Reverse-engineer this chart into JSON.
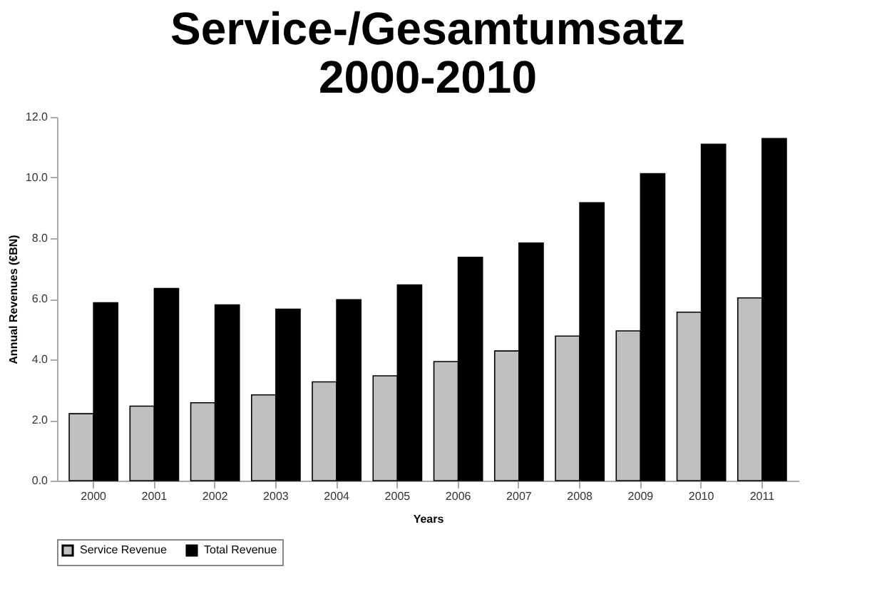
{
  "chart_data": {
    "type": "bar",
    "title": "Service-/Gesamtumsatz\n2000-2010",
    "xlabel": "Years",
    "ylabel": "Annual Revenues (€BN)",
    "categories": [
      "2000",
      "2001",
      "2002",
      "2003",
      "2004",
      "2005",
      "2006",
      "2007",
      "2008",
      "2009",
      "2010",
      "2011"
    ],
    "series": [
      {
        "name": "Service Revenue",
        "color": "#c0c0c0",
        "values": [
          2.21,
          2.46,
          2.57,
          2.83,
          3.26,
          3.46,
          3.93,
          4.28,
          4.77,
          4.94,
          5.56,
          6.03
        ]
      },
      {
        "name": "Total Revenue",
        "color": "#000000",
        "values": [
          5.87,
          6.34,
          5.8,
          5.66,
          5.97,
          6.46,
          7.37,
          7.84,
          9.17,
          10.13,
          11.1,
          11.29
        ]
      }
    ],
    "ylim": [
      0,
      12
    ],
    "yticks": [
      {
        "value": 0,
        "label": "0.0"
      },
      {
        "value": 2,
        "label": "2.0"
      },
      {
        "value": 4,
        "label": "4.0"
      },
      {
        "value": 6,
        "label": "6.0"
      },
      {
        "value": 8,
        "label": "8.0"
      },
      {
        "value": 10,
        "label": "10.0"
      },
      {
        "value": 12,
        "label": "12.0"
      }
    ],
    "grid": false,
    "legend": "bottom"
  }
}
